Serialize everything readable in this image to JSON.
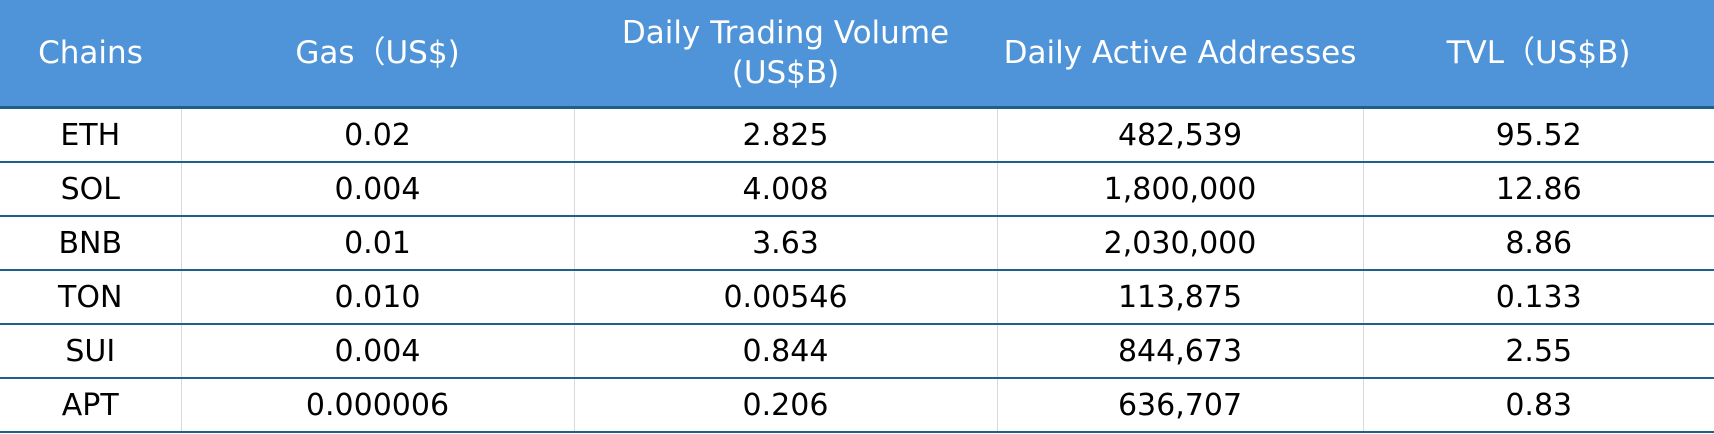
{
  "table": {
    "headers": [
      "Chains",
      "Gas（US$)",
      "Daily Trading Volume (US$B)",
      "Daily Active Addresses",
      "TVL（US$B)"
    ],
    "rows": [
      [
        "ETH",
        "0.02",
        "2.825",
        "482,539",
        "95.52"
      ],
      [
        "SOL",
        "0.004",
        "4.008",
        "1,800,000",
        "12.86"
      ],
      [
        "BNB",
        "0.01",
        "3.63",
        "2,030,000",
        "8.86"
      ],
      [
        "TON",
        "0.010",
        "0.00546",
        "113,875",
        "0.133"
      ],
      [
        "SUI",
        "0.004",
        "0.844",
        "844,673",
        "2.55"
      ],
      [
        "APT",
        "0.000006",
        "0.206",
        "636,707",
        "0.83"
      ]
    ]
  },
  "colors": {
    "header_bg": "#4f94d8",
    "header_text": "#ffffff",
    "row_rule": "#1f5f8b"
  }
}
